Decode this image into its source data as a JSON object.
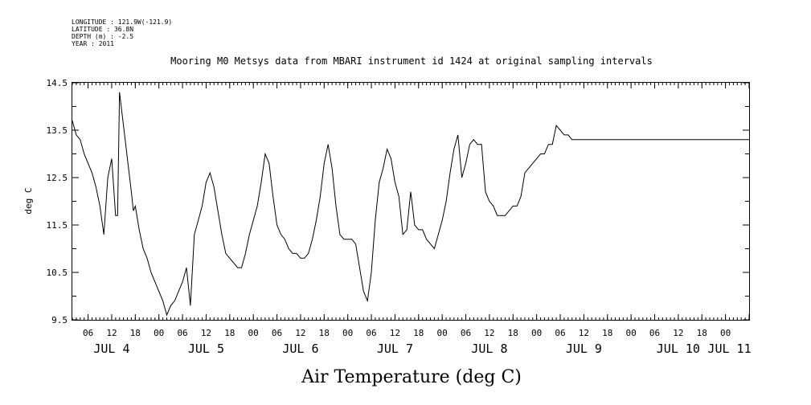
{
  "metadata": {
    "longitude": "LONGITUDE : 121.9W(-121.9)",
    "latitude": "LATITUDE : 36.8N",
    "depth": "DEPTH (m) : -2.5",
    "year": "YEAR : 2011"
  },
  "title": "Mooring M0 Metsys data from MBARI instrument id 1424 at original sampling intervals",
  "bottom_title": "Air Temperature (deg C)",
  "chart_data": {
    "type": "line",
    "title": "Mooring M0 Metsys data from MBARI instrument id 1424 at original sampling intervals",
    "xlabel": "Air Temperature (deg C)",
    "ylabel": "deg C",
    "ylim": [
      9.5,
      14.5
    ],
    "xlim_hours": [
      2,
      174
    ],
    "yticks": [
      "9.5",
      "10.5",
      "11.5",
      "12.5",
      "13.5",
      "14.5"
    ],
    "ytick_values": [
      9.5,
      10.5,
      11.5,
      12.5,
      13.5,
      14.5
    ],
    "xtick_labels": [
      "06",
      "12",
      "18",
      "00",
      "06",
      "12",
      "18",
      "00",
      "06",
      "12",
      "18",
      "00",
      "06",
      "12",
      "18",
      "00",
      "06",
      "12",
      "18",
      "00",
      "06",
      "12",
      "18",
      "00",
      "06",
      "12",
      "18",
      "00"
    ],
    "day_labels": [
      "JUL  4",
      "JUL  5",
      "JUL  6",
      "JUL  7",
      "JUL  8",
      "JUL  9",
      "JUL 10",
      "JUL 11"
    ],
    "grid": false,
    "series": [
      {
        "hours_since_jul4_00": [
          2,
          3,
          4,
          5,
          6,
          7,
          8,
          9,
          10,
          11,
          12,
          13,
          13.5,
          14,
          15,
          16,
          17,
          17.5,
          18,
          19,
          20,
          21,
          22,
          23,
          24,
          25,
          26,
          27,
          28,
          29,
          30,
          31,
          32,
          33,
          34,
          35,
          36,
          37,
          38,
          39,
          40,
          41,
          42,
          43,
          44,
          45,
          46,
          47,
          48,
          49,
          50,
          51,
          52,
          53,
          54,
          55,
          56,
          57,
          58,
          59,
          60,
          61,
          62,
          63,
          64,
          65,
          66,
          67,
          68,
          69,
          70,
          71,
          72,
          73,
          74,
          75,
          76,
          77,
          78,
          79,
          80,
          81,
          82,
          83,
          84,
          85,
          86,
          87,
          88,
          89,
          90,
          91,
          92,
          93,
          94,
          95,
          96,
          97,
          98,
          99,
          100,
          101,
          102,
          103,
          104,
          105,
          106,
          107,
          108,
          109,
          110,
          111,
          112,
          113,
          114,
          115,
          116,
          117,
          118,
          119,
          120,
          121,
          122,
          123,
          124,
          125,
          126,
          127,
          128,
          129,
          130,
          131,
          132,
          133,
          134,
          135,
          136,
          137,
          138,
          139,
          140,
          141,
          142,
          143,
          144,
          145,
          146,
          147,
          148,
          149,
          150,
          151,
          152,
          153,
          154,
          155,
          156,
          157,
          158,
          159,
          160,
          161,
          162,
          163,
          164,
          165,
          166,
          167,
          168,
          169,
          170,
          171,
          172,
          173,
          174
        ],
        "values": [
          13.7,
          13.4,
          13.3,
          13.0,
          12.8,
          12.6,
          12.3,
          11.9,
          11.3,
          12.5,
          12.9,
          11.7,
          11.7,
          14.3,
          13.6,
          12.9,
          12.2,
          11.8,
          11.9,
          11.4,
          11.0,
          10.8,
          10.5,
          10.3,
          10.1,
          9.9,
          9.6,
          9.8,
          9.9,
          10.1,
          10.3,
          10.6,
          9.8,
          11.3,
          11.6,
          11.9,
          12.4,
          12.6,
          12.3,
          11.8,
          11.3,
          10.9,
          10.8,
          10.7,
          10.6,
          10.6,
          10.9,
          11.3,
          11.6,
          11.9,
          12.4,
          13.0,
          12.8,
          12.1,
          11.5,
          11.3,
          11.2,
          11.0,
          10.9,
          10.9,
          10.8,
          10.8,
          10.9,
          11.2,
          11.6,
          12.1,
          12.8,
          13.2,
          12.7,
          11.9,
          11.3,
          11.2,
          11.2,
          11.2,
          11.1,
          10.6,
          10.1,
          9.9,
          10.5,
          11.6,
          12.4,
          12.7,
          13.1,
          12.9,
          12.4,
          12.1,
          11.3,
          11.4,
          12.2,
          11.5,
          11.4,
          11.4,
          11.2,
          11.1,
          11.0,
          11.3,
          11.6,
          12.0,
          12.6,
          13.1,
          13.4,
          12.5,
          12.8,
          13.2,
          13.3,
          13.2,
          13.2,
          12.2,
          12.0,
          11.9,
          11.7,
          11.7,
          11.7,
          11.8,
          11.9,
          11.9,
          12.1,
          12.6,
          12.7,
          12.8,
          12.9,
          13.0,
          13.0,
          13.2,
          13.2,
          13.6,
          13.5,
          13.4,
          13.4,
          13.3,
          13.3,
          13.3,
          13.3,
          13.3,
          13.3,
          13.3,
          13.3,
          13.3,
          13.3,
          13.3,
          13.3,
          13.3,
          13.3,
          13.3,
          13.3,
          13.3,
          13.3,
          13.3,
          13.3,
          13.3,
          13.3,
          13.3,
          13.3,
          13.3,
          13.3,
          13.3,
          13.3,
          13.3,
          13.3,
          13.3,
          13.3,
          13.3,
          13.3,
          13.3,
          13.3,
          13.3,
          13.3,
          13.3,
          13.3,
          13.3,
          13.3,
          13.3,
          13.3,
          13.3,
          13.3,
          13.3,
          13.3
        ]
      }
    ]
  }
}
